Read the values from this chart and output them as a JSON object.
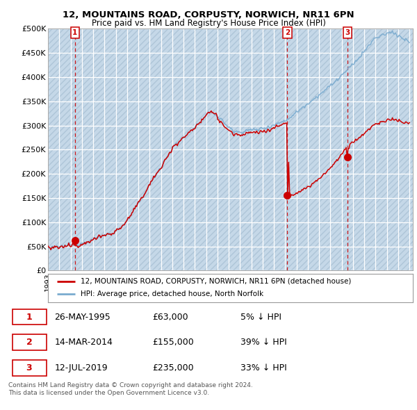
{
  "title1": "12, MOUNTAINS ROAD, CORPUSTY, NORWICH, NR11 6PN",
  "title2": "Price paid vs. HM Land Registry's House Price Index (HPI)",
  "ylim": [
    0,
    500000
  ],
  "yticks": [
    0,
    50000,
    100000,
    150000,
    200000,
    250000,
    300000,
    350000,
    400000,
    450000,
    500000
  ],
  "ytick_labels": [
    "£0",
    "£50K",
    "£100K",
    "£150K",
    "£200K",
    "£250K",
    "£300K",
    "£350K",
    "£400K",
    "£450K",
    "£500K"
  ],
  "hpi_color": "#7aabcf",
  "price_color": "#cc0000",
  "plot_bg": "#dde8f2",
  "hatch_facecolor": "#c5d8e8",
  "hatch_edgecolor": "#aec5d8",
  "sale_marker_color": "#cc0000",
  "sale_dashed_color": "#cc0000",
  "sales": [
    {
      "date_num": 1995.39,
      "price": 63000,
      "label": "1"
    },
    {
      "date_num": 2014.19,
      "price": 155000,
      "label": "2"
    },
    {
      "date_num": 2019.52,
      "price": 235000,
      "label": "3"
    }
  ],
  "legend_label_price": "12, MOUNTAINS ROAD, CORPUSTY, NORWICH, NR11 6PN (detached house)",
  "legend_label_hpi": "HPI: Average price, detached house, North Norfolk",
  "table_data": [
    [
      "1",
      "26-MAY-1995",
      "£63,000",
      "5% ↓ HPI"
    ],
    [
      "2",
      "14-MAR-2014",
      "£155,000",
      "39% ↓ HPI"
    ],
    [
      "3",
      "12-JUL-2019",
      "£235,000",
      "33% ↓ HPI"
    ]
  ],
  "footer": "Contains HM Land Registry data © Crown copyright and database right 2024.\nThis data is licensed under the Open Government Licence v3.0.",
  "xlim_left": 1993.0,
  "xlim_right": 2025.3
}
